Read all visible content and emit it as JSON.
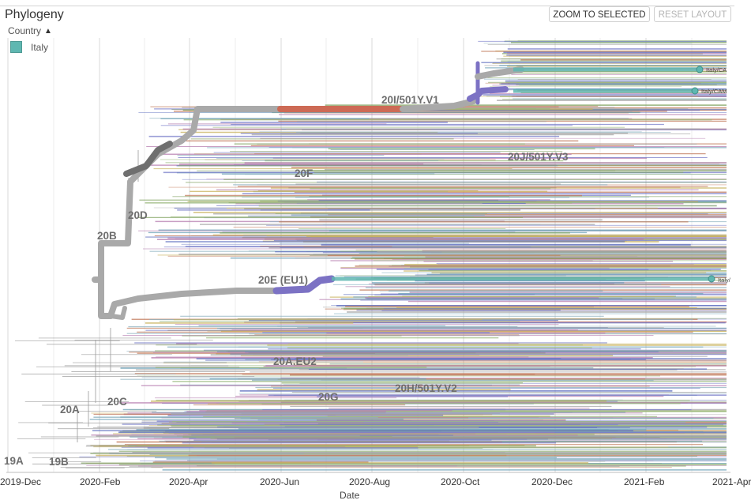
{
  "panel": {
    "title": "Phylogeny"
  },
  "buttons": {
    "zoom_to_selected": "ZOOM TO SELECTED",
    "reset_layout": "RESET LAYOUT"
  },
  "legend": {
    "title": "Country",
    "items": [
      {
        "label": "Italy",
        "color": "#5fb7b1"
      }
    ]
  },
  "axis": {
    "title": "Date",
    "ticks": [
      "2019-Dec",
      "2020-Feb",
      "2020-Apr",
      "2020-Jun",
      "2020-Aug",
      "2020-Oct",
      "2020-Dec",
      "2021-Feb",
      "2021-Apr"
    ]
  },
  "clades": {
    "c19A": "19A",
    "c19B": "19B",
    "c20A": "20A",
    "c20B": "20B",
    "c20C": "20C",
    "c20D": "20D",
    "c20F": "20F",
    "c20E": "20E (EU1)",
    "c20I": "20I/501Y.V1",
    "c20J": "20J/501Y.V3",
    "c20AEU2": "20A.EU2",
    "c20G": "20G",
    "c20H": "20H/501Y.V2"
  },
  "tips": {
    "tip1": "Italy/CA",
    "tip2": "Italy/CAM",
    "tip3": "Italy/"
  },
  "colors": {
    "highlight_italy": "#5fb7b1",
    "trunk_gray": "#a9a9a9",
    "dark_gray": "#6f6f6f",
    "uk_red": "#cd6a55",
    "eu1_purple": "#7c72c4",
    "palette": [
      "#7a7fc9",
      "#8fb3c0",
      "#9cba7f",
      "#c8b25c",
      "#b77fb0",
      "#6fa3b8",
      "#c27b5c",
      "#88a86a",
      "#5f6fbf",
      "#a5a5a5"
    ]
  }
}
